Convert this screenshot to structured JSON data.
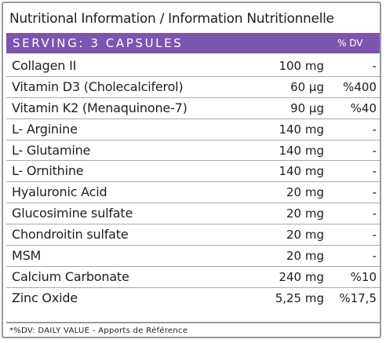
{
  "title": "Nutritional Information / Information Nutritionnelle",
  "header": {
    "serving": "SERVING: 3 CAPSULES",
    "dv_label": "% DV"
  },
  "rows": [
    {
      "name": "Collagen II",
      "amount": "100 mg",
      "dv": "-"
    },
    {
      "name": "Vitamin D3 (Cholecalciferol)",
      "amount": "60 μg",
      "dv": "%400"
    },
    {
      "name": "Vitamin K2 (Menaquinone-7)",
      "amount": "90 μg",
      "dv": "%40"
    },
    {
      "name": "L- Arginine",
      "amount": "140 mg",
      "dv": "-"
    },
    {
      "name": "L- Glutamine",
      "amount": "140 mg",
      "dv": "-"
    },
    {
      "name": "L- Ornithine",
      "amount": "140 mg",
      "dv": "-"
    },
    {
      "name": "Hyaluronic Acid",
      "amount": "20 mg",
      "dv": "-"
    },
    {
      "name": "Glucosimine sulfate",
      "amount": "20 mg",
      "dv": "-"
    },
    {
      "name": "Chondroitin sulfate",
      "amount": "20 mg",
      "dv": "-"
    },
    {
      "name": "MSM",
      "amount": "20 mg",
      "dv": "-"
    },
    {
      "name": "Calcium Carbonate",
      "amount": "240 mg",
      "dv": "%10"
    },
    {
      "name": "Zinc Oxide",
      "amount": "5,25 mg",
      "dv": "%17,5"
    }
  ],
  "footnote": "*%DV: DAILY VALUE - Apports de Référence",
  "colors": {
    "header_bar": "#7c55b0",
    "border": "#9a9a9a"
  }
}
